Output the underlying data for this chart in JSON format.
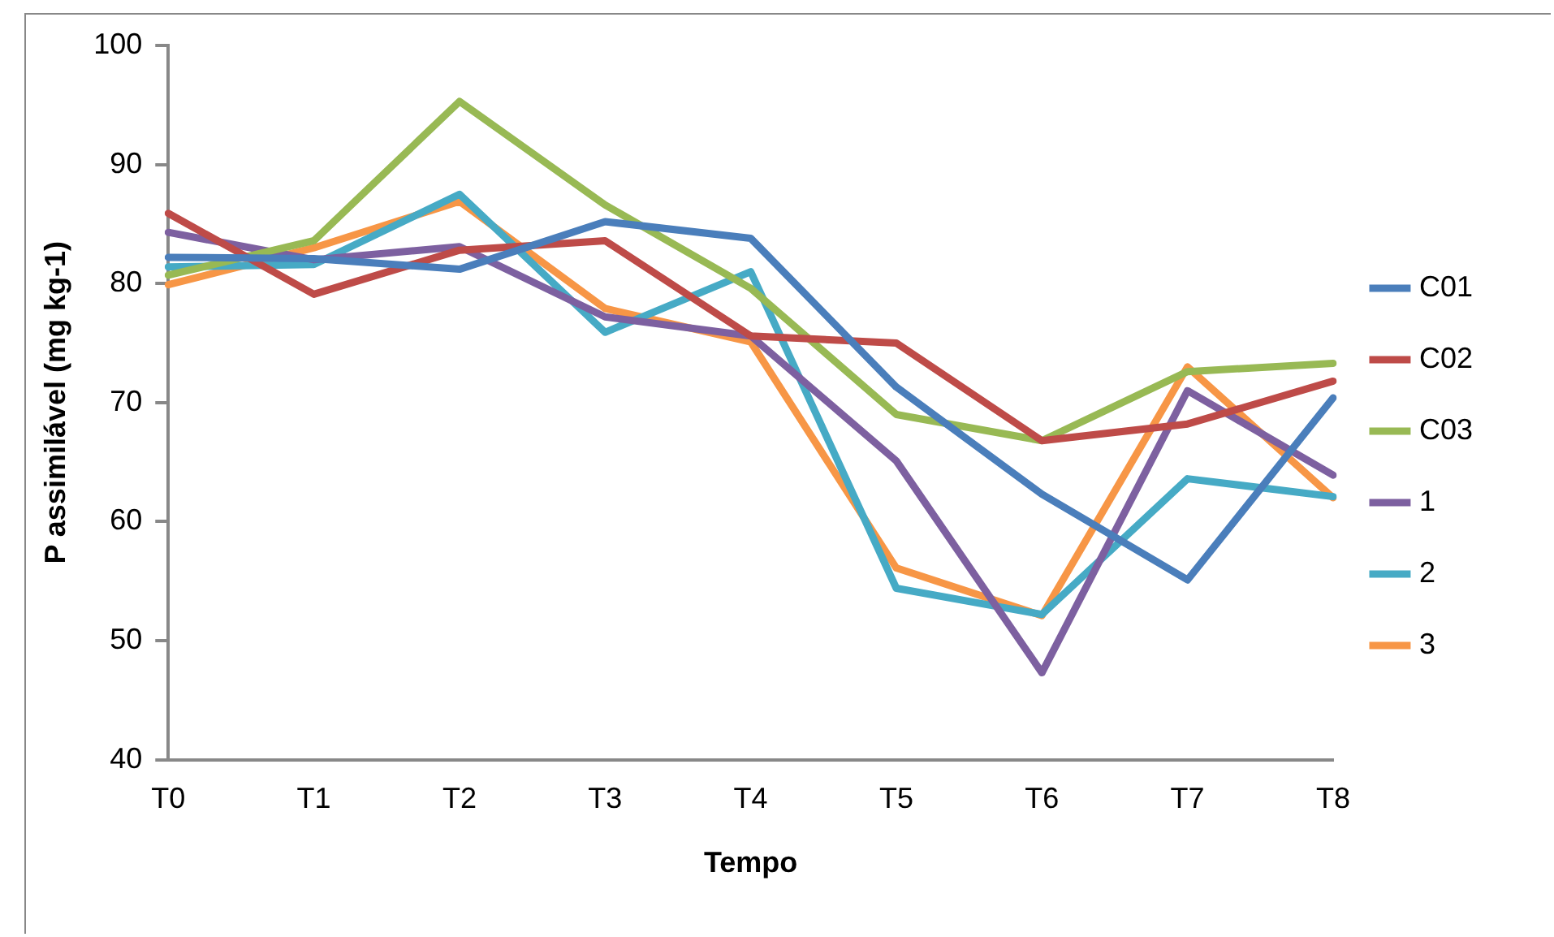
{
  "chart_data": {
    "type": "line",
    "xlabel": "Tempo",
    "ylabel": "P assimilável (mg kg-1)",
    "categories": [
      "T0",
      "T1",
      "T2",
      "T3",
      "T4",
      "T5",
      "T6",
      "T7",
      "T8"
    ],
    "ylim": [
      40,
      100
    ],
    "yticks": [
      40,
      50,
      60,
      70,
      80,
      90,
      100
    ],
    "grid": false,
    "legend": "right",
    "marker": "none",
    "line_style": "solid",
    "series": [
      {
        "name": "C01",
        "color": "#4a7ebb",
        "values": [
          82.2,
          82.1,
          81.2,
          85.2,
          83.8,
          71.3,
          62.3,
          55.1,
          70.4
        ]
      },
      {
        "name": "C02",
        "color": "#be4b48",
        "values": [
          85.9,
          79.1,
          82.8,
          83.6,
          75.6,
          75.0,
          66.8,
          68.2,
          71.8
        ]
      },
      {
        "name": "C03",
        "color": "#98b954",
        "values": [
          80.7,
          83.6,
          95.3,
          86.6,
          79.6,
          69.0,
          66.8,
          72.6,
          73.3
        ]
      },
      {
        "name": "1",
        "color": "#7d60a0",
        "values": [
          84.3,
          82.0,
          83.1,
          77.2,
          75.6,
          65.1,
          47.3,
          71.0,
          63.9
        ]
      },
      {
        "name": "2",
        "color": "#46aac5",
        "values": [
          81.4,
          81.6,
          87.5,
          75.9,
          81.0,
          54.4,
          52.2,
          63.6,
          62.1
        ]
      },
      {
        "name": "3",
        "color": "#f79646",
        "values": [
          79.9,
          83.0,
          86.9,
          77.9,
          75.1,
          56.1,
          52.1,
          73.0,
          62.0
        ]
      }
    ]
  }
}
